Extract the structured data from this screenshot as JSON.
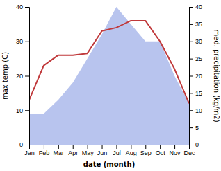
{
  "chart_data": {
    "type": "line",
    "xlabel": "date (month)",
    "ylabel": "max temp (C)",
    "y2label": "med. precipitation (kg/m2)",
    "categories": [
      "Jan",
      "Feb",
      "Mar",
      "Apr",
      "May",
      "Jun",
      "Jul",
      "Aug",
      "Sep",
      "Oct",
      "Nov",
      "Dec"
    ],
    "series": [
      {
        "type": "area",
        "axis": "y2",
        "color": "#b8c4ee",
        "values": [
          9,
          9,
          13,
          18,
          25,
          32,
          40,
          35,
          30,
          30,
          20,
          12
        ]
      },
      {
        "type": "line",
        "color": "#c0393b",
        "values": [
          13,
          23,
          26,
          26,
          26.5,
          33,
          34,
          36,
          36,
          30,
          22,
          12
        ]
      }
    ],
    "ylim": [
      0,
      40
    ],
    "yticks": [
      0,
      10,
      20,
      30,
      40
    ],
    "y2lim": [
      0,
      40
    ],
    "y2ticks": [
      0,
      5,
      10,
      15,
      20,
      25,
      30,
      35,
      40
    ],
    "grid": false
  }
}
